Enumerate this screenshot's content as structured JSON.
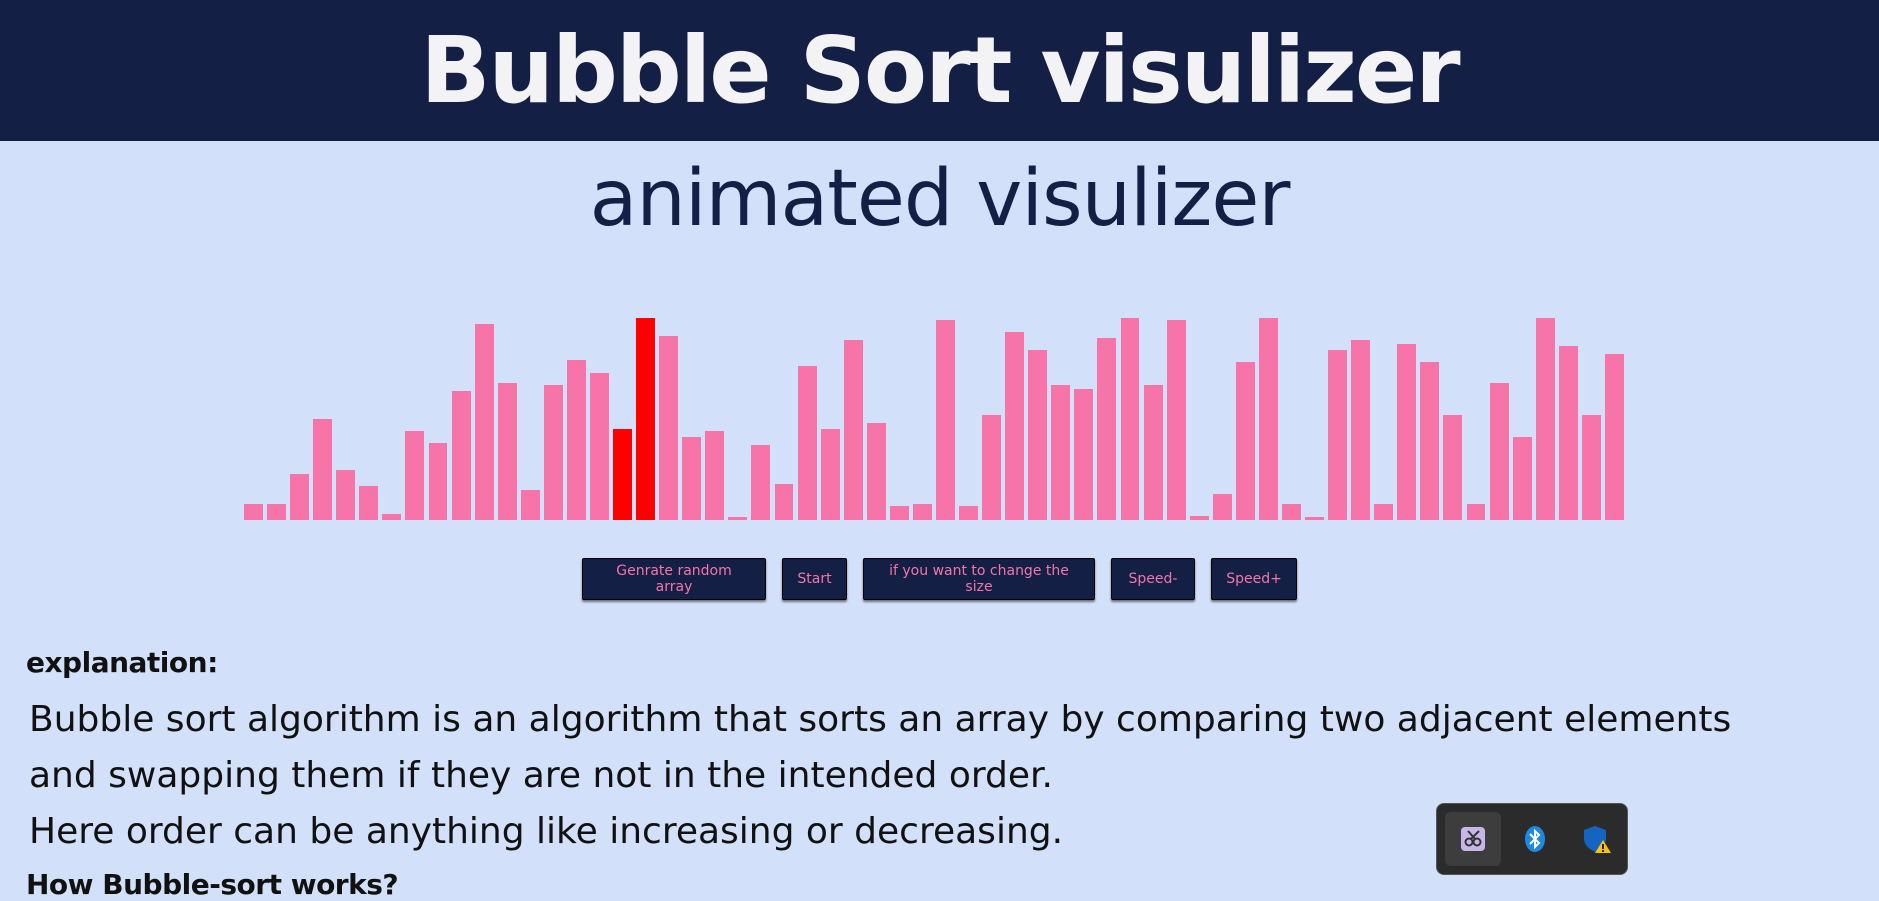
{
  "header": {
    "title": "Bubble Sort visulizer"
  },
  "subtitle": "animated visulizer",
  "visualizer": {
    "bar_color": "#f674a8",
    "compare_color": "#ff0000",
    "max_value": 100,
    "values": [
      8,
      8,
      23,
      50,
      25,
      17,
      3,
      44,
      38,
      64,
      97,
      68,
      15,
      67,
      79,
      73,
      45,
      100,
      91,
      41,
      44,
      1,
      37,
      18,
      76,
      45,
      89,
      48,
      7,
      8,
      99,
      7,
      52,
      93,
      84,
      67,
      65,
      90,
      100,
      67,
      99,
      2,
      13,
      78,
      100,
      8,
      1,
      84,
      89,
      8,
      87,
      78,
      52,
      8,
      68,
      41,
      100,
      86,
      52,
      82
    ],
    "compare_indices": [
      16,
      17
    ]
  },
  "controls": {
    "random": "Genrate random array",
    "start": "Start",
    "size": "if you want to change the size",
    "speed_down": "Speed-",
    "speed_up": "Speed+"
  },
  "explanation": {
    "heading": "explanation:",
    "line1": "Bubble sort algorithm is an algorithm that sorts an array by comparing two adjacent elements",
    "line2": "and swapping them if they are not in the intended order.",
    "line3": "Here order can be anything like increasing or decreasing.",
    "how_heading": "How Bubble-sort works?"
  },
  "tray": {
    "icons": [
      "snipping-tool-icon",
      "bluetooth-icon",
      "defender-warning-icon"
    ]
  }
}
